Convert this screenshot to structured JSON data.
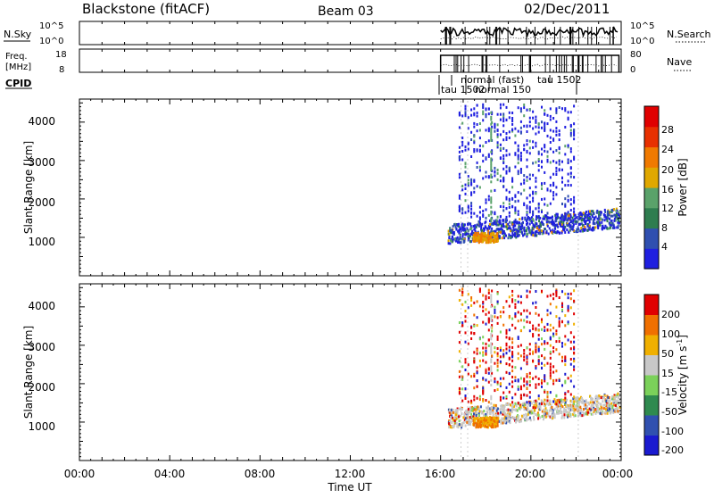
{
  "header": {
    "station": "Blackstone (fitACF)",
    "beam": "Beam 03",
    "date": "02/Dec/2011"
  },
  "nsky_panel": {
    "left_label": "N.Sky",
    "left_ticks": [
      "10^5",
      "10^0"
    ],
    "right_ticks": [
      "10^5",
      "10^0"
    ],
    "right_label": "N.Search"
  },
  "freq_panel": {
    "left_label_line1": "Freq.",
    "left_label_line2": "[MHz]",
    "left_ticks": [
      "18",
      "8"
    ],
    "right_ticks": [
      "80",
      "0"
    ],
    "right_label": "Nave"
  },
  "cpid": {
    "label": "CPID",
    "annotations": [
      "tau 1502",
      "normal 150",
      "normal (fast)",
      "tau 1502"
    ]
  },
  "power_panel": {
    "ylabel": "Slant Range [km]",
    "yticks": [
      "4000",
      "3000",
      "2000",
      "1000"
    ],
    "colorbar_label": "Power [dB]",
    "colorbar_ticks": [
      "28",
      "24",
      "20",
      "16",
      "12",
      "8",
      "4"
    ]
  },
  "velocity_panel": {
    "ylabel": "Slant Range [km]",
    "yticks": [
      "4000",
      "3000",
      "2000",
      "1000"
    ],
    "colorbar_label_main": "Velocity [m s",
    "colorbar_label_sup": "-1",
    "colorbar_label_end": "]",
    "colorbar_ticks": [
      "200",
      "100",
      "50",
      "15",
      "-15",
      "-50",
      "-100",
      "-200"
    ]
  },
  "xaxis": {
    "ticks": [
      "00:00",
      "04:00",
      "08:00",
      "12:00",
      "16:00",
      "20:00",
      "00:00"
    ],
    "label": "Time UT"
  },
  "chart_data": {
    "type": "heatmap",
    "x_range_hours": [
      0,
      24
    ],
    "y_range_km": [
      0,
      4600
    ],
    "data_start_hour": 16.0,
    "data_end_hour": 23.9,
    "power_colors": [
      "#1f1fe0",
      "#2f4fb0",
      "#2e7d4f",
      "#5aa26a",
      "#e0a800",
      "#f07a00",
      "#e83000",
      "#e00000"
    ],
    "velocity_colors": [
      "#1a1ad0",
      "#3050b0",
      "#2f8a4f",
      "#7bd15a",
      "#c8c8c8",
      "#f0b000",
      "#f07000",
      "#e00000"
    ]
  }
}
